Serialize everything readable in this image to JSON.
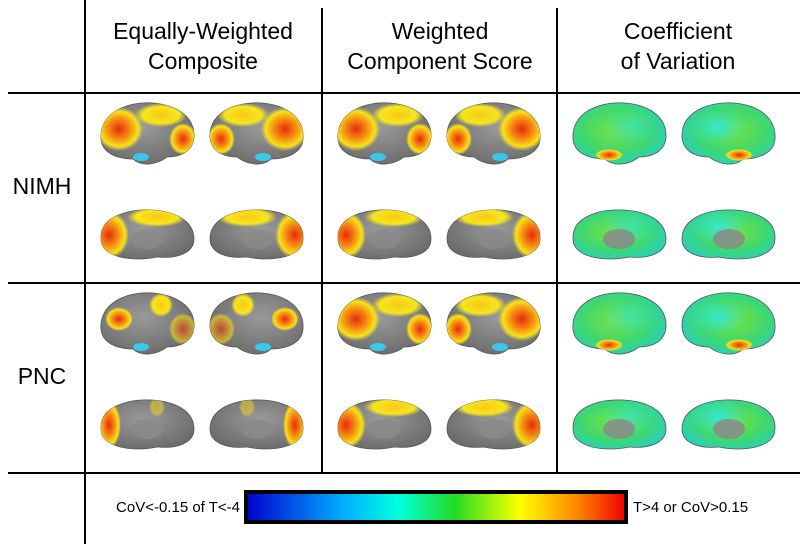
{
  "header": {
    "columns": [
      [
        "Equally-Weighted",
        "Composite"
      ],
      [
        "Weighted",
        "Component Score"
      ],
      [
        "Coefficient",
        "of Variation"
      ]
    ]
  },
  "rows": [
    "NIMH",
    "PNC"
  ],
  "colorbar": {
    "low_label": "CoV<-0.15 of T<-4",
    "high_label": "T>4 or CoV>0.15"
  }
}
